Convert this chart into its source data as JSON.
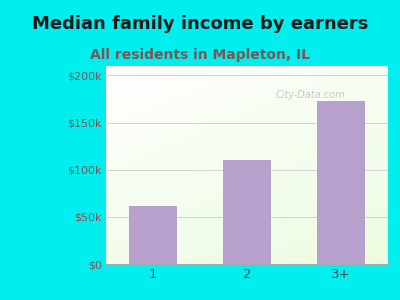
{
  "categories": [
    "1",
    "2",
    "3+"
  ],
  "values": [
    62000,
    110000,
    173000
  ],
  "bar_color": "#b8a0cc",
  "title": "Median family income by earners",
  "subtitle": "All residents in Mapleton, IL",
  "title_fontsize": 13,
  "subtitle_fontsize": 10,
  "title_color": "#1a1a1a",
  "subtitle_color": "#7a5555",
  "ytick_color": "#7a5555",
  "xtick_color": "#444444",
  "bg_outer": "#00eeee",
  "ylim": [
    0,
    210000
  ],
  "yticks": [
    0,
    50000,
    100000,
    150000,
    200000
  ],
  "ytick_labels": [
    "$0",
    "$50k",
    "$100k",
    "$150k",
    "$200k"
  ],
  "watermark": "City-Data.com",
  "grid_color": "#cccccc"
}
